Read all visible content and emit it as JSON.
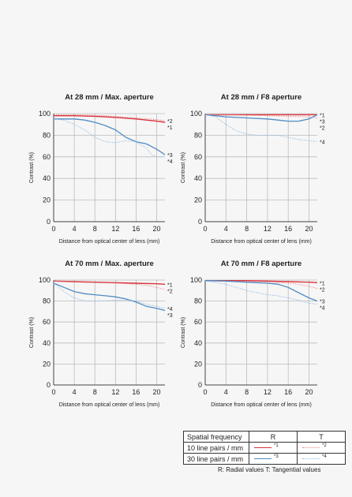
{
  "colors": {
    "red": "#d9333b",
    "redLight": "#e8848a",
    "blue": "#4f8cc4",
    "blueLight": "#8db8e0",
    "axis": "#444444",
    "grid": "#bbbbbb"
  },
  "chart_data": [
    {
      "type": "line",
      "title": "At 28 mm / Max. aperture",
      "xlabel": "Distance from optical center of lens (mm)",
      "ylabel": "Contrast (%)",
      "xlim": [
        0,
        21.6
      ],
      "ylim": [
        0,
        100
      ],
      "xticks": [
        0,
        4,
        8,
        12,
        16,
        20
      ],
      "yticks": [
        0,
        20,
        40,
        60,
        80,
        100
      ],
      "grid": true,
      "series": [
        {
          "name": "*1",
          "x": [
            0,
            4,
            8,
            12,
            16,
            20,
            21.6
          ],
          "y": [
            98,
            98,
            97.5,
            96.5,
            95,
            93,
            92
          ]
        },
        {
          "name": "*2",
          "x": [
            0,
            4,
            8,
            12,
            16,
            20,
            21.6
          ],
          "y": [
            99,
            99,
            98.5,
            97.5,
            96,
            94.5,
            93.5
          ]
        },
        {
          "name": "*3",
          "x": [
            0,
            2,
            4,
            6,
            8,
            10,
            12,
            14,
            16,
            18,
            20,
            21.6
          ],
          "y": [
            95,
            95,
            95,
            94,
            92,
            89,
            85,
            78,
            74,
            72,
            67,
            62
          ]
        },
        {
          "name": "*4",
          "x": [
            0,
            2,
            4,
            6,
            8,
            10,
            12,
            14,
            16,
            18,
            19,
            20,
            21.6
          ],
          "y": [
            95,
            94,
            90,
            85,
            78,
            74,
            73,
            75,
            74,
            68,
            62,
            60,
            60
          ]
        }
      ]
    },
    {
      "type": "line",
      "title": "At 28 mm / F8 aperture",
      "xlabel": "Distance from optical center of lens (mm)",
      "ylabel": "Contrast (%)",
      "xlim": [
        0,
        21.6
      ],
      "ylim": [
        0,
        100
      ],
      "xticks": [
        0,
        4,
        8,
        12,
        16,
        20
      ],
      "yticks": [
        0,
        20,
        40,
        60,
        80,
        100
      ],
      "grid": true,
      "series": [
        {
          "name": "*1",
          "x": [
            0,
            4,
            8,
            12,
            16,
            20,
            21.6
          ],
          "y": [
            99,
            99,
            99,
            99,
            99,
            99,
            99
          ]
        },
        {
          "name": "*2",
          "x": [
            0,
            4,
            8,
            12,
            16,
            20,
            21.6
          ],
          "y": [
            99,
            99,
            98.5,
            98,
            97.5,
            97,
            96
          ]
        },
        {
          "name": "*3",
          "x": [
            0,
            2,
            4,
            8,
            12,
            14,
            16,
            18,
            20,
            21.6
          ],
          "y": [
            99,
            98,
            97,
            96,
            95,
            94,
            93,
            93,
            95,
            99
          ]
        },
        {
          "name": "*4",
          "x": [
            0,
            2,
            4,
            6,
            8,
            10,
            12,
            14,
            16,
            18,
            20,
            21.6
          ],
          "y": [
            99,
            97,
            90,
            84,
            81,
            80,
            80,
            80,
            78,
            76,
            75,
            74
          ]
        }
      ]
    },
    {
      "type": "line",
      "title": "At 70 mm / Max. aperture",
      "xlabel": "Distance from optical center of lens (mm)",
      "ylabel": "Contrast (%)",
      "xlim": [
        0,
        21.6
      ],
      "ylim": [
        0,
        100
      ],
      "xticks": [
        0,
        4,
        8,
        12,
        16,
        20
      ],
      "yticks": [
        0,
        20,
        40,
        60,
        80,
        100
      ],
      "grid": true,
      "series": [
        {
          "name": "*1",
          "x": [
            0,
            4,
            8,
            12,
            16,
            20,
            21.6
          ],
          "y": [
            99,
            98.5,
            98,
            97.5,
            97,
            96.5,
            96
          ]
        },
        {
          "name": "*2",
          "x": [
            0,
            4,
            8,
            12,
            16,
            18,
            20,
            21.6
          ],
          "y": [
            99,
            98,
            97.5,
            97,
            96,
            95,
            93,
            91
          ]
        },
        {
          "name": "*3",
          "x": [
            0,
            2,
            4,
            6,
            8,
            10,
            12,
            14,
            16,
            18,
            20,
            21.6
          ],
          "y": [
            97,
            93,
            89,
            87,
            86,
            85,
            84,
            82,
            79,
            75,
            73,
            71
          ]
        },
        {
          "name": "*4",
          "x": [
            0,
            2,
            4,
            6,
            8,
            10,
            12,
            14,
            16,
            18,
            20,
            21.6
          ],
          "y": [
            97,
            89,
            83,
            80,
            80,
            80,
            81,
            81,
            80,
            77,
            75,
            73
          ]
        }
      ]
    },
    {
      "type": "line",
      "title": "At 70 mm / F8 aperture",
      "xlabel": "Distance from optical center of lens (mm)",
      "ylabel": "Contrast (%)",
      "xlim": [
        0,
        21.6
      ],
      "ylim": [
        0,
        100
      ],
      "xticks": [
        0,
        4,
        8,
        12,
        16,
        20
      ],
      "yticks": [
        0,
        20,
        40,
        60,
        80,
        100
      ],
      "grid": true,
      "series": [
        {
          "name": "*1",
          "x": [
            0,
            4,
            8,
            12,
            16,
            20,
            21.6
          ],
          "y": [
            99.5,
            99.5,
            99.5,
            99,
            98.5,
            98,
            97.5
          ]
        },
        {
          "name": "*2",
          "x": [
            0,
            4,
            8,
            12,
            16,
            18,
            20,
            21.6
          ],
          "y": [
            99.5,
            99,
            98.5,
            98,
            97,
            96,
            94,
            92
          ]
        },
        {
          "name": "*3",
          "x": [
            0,
            4,
            8,
            12,
            14,
            16,
            18,
            20,
            21.6
          ],
          "y": [
            99.5,
            99,
            98,
            97,
            96,
            93,
            88,
            83,
            80
          ]
        },
        {
          "name": "*4",
          "x": [
            0,
            2,
            4,
            6,
            8,
            10,
            12,
            14,
            16,
            18,
            20,
            21.6
          ],
          "y": [
            99,
            98,
            96,
            93,
            90,
            88,
            86,
            85,
            83,
            81,
            78,
            77
          ]
        }
      ]
    }
  ],
  "legend": {
    "header": {
      "label": "Spatial frequency",
      "r": "R",
      "t": "T"
    },
    "rows": [
      {
        "label": "10 line pairs / mm",
        "r_mark": "*1",
        "t_mark": "*2"
      },
      {
        "label": "30 line pairs / mm",
        "r_mark": "*3",
        "t_mark": "*4"
      }
    ]
  },
  "note": "R: Radial values  T: Tangential values"
}
